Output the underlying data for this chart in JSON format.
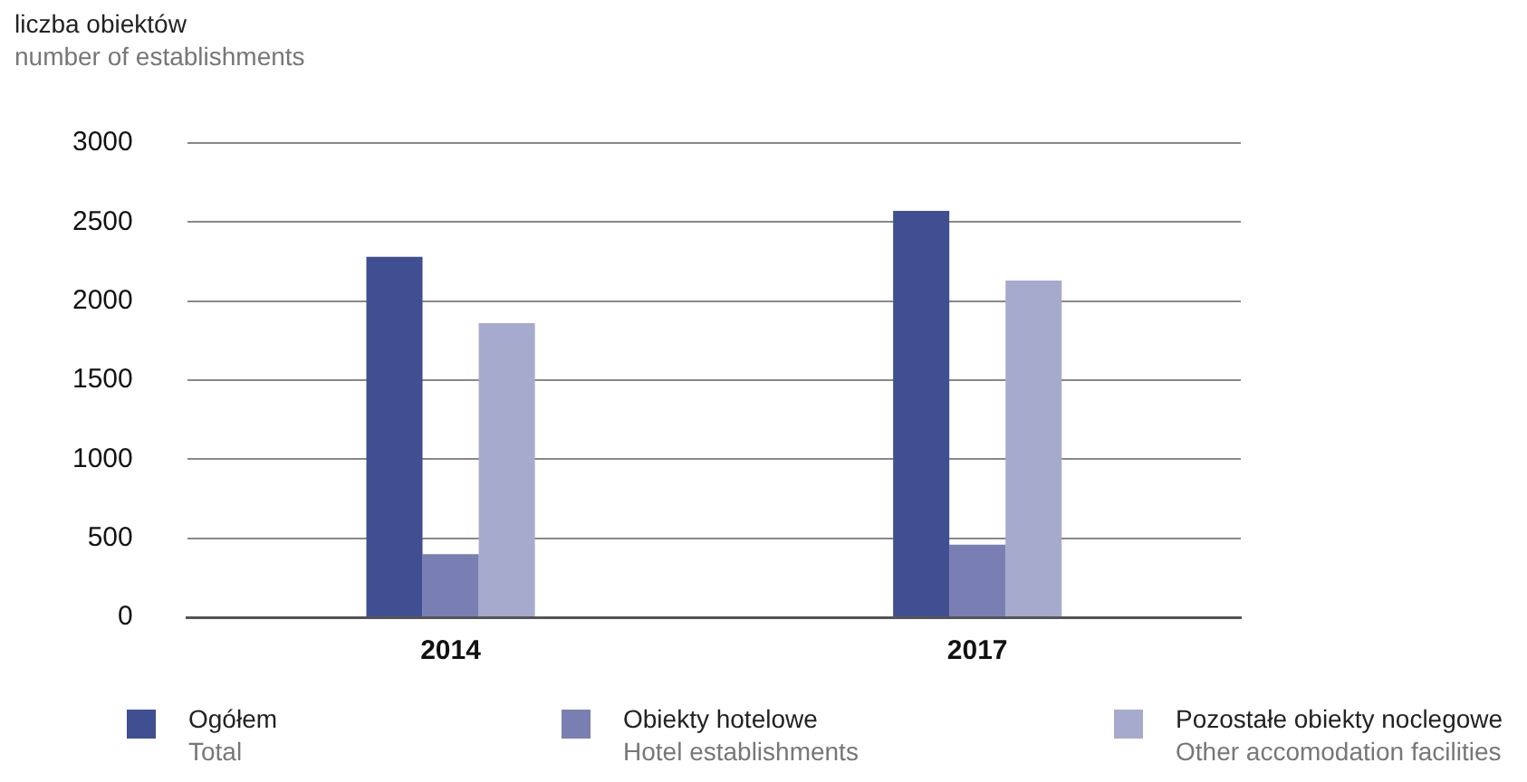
{
  "chart_data": {
    "type": "bar",
    "ylabel": "liczba obiektów\nnumber of establishments",
    "categories": [
      "2014",
      "2017"
    ],
    "series": [
      {
        "name": "Ogółem\nTotal",
        "color": "#3f4f91",
        "values": [
          2280,
          2570
        ]
      },
      {
        "name": "Obiekty hotelowe\nHotel establishments",
        "color": "#7a7fb3",
        "values": [
          400,
          460
        ]
      },
      {
        "name": "Pozostałe obiekty noclegowe\nOther accomodation facilities",
        "color": "#a6aacd",
        "values": [
          1860,
          2130
        ]
      }
    ],
    "ylim": [
      0,
      3000
    ],
    "yticks": [
      0,
      500,
      1000,
      1500,
      2000,
      2500,
      3000
    ],
    "grid": "y",
    "legend": "bottom"
  }
}
